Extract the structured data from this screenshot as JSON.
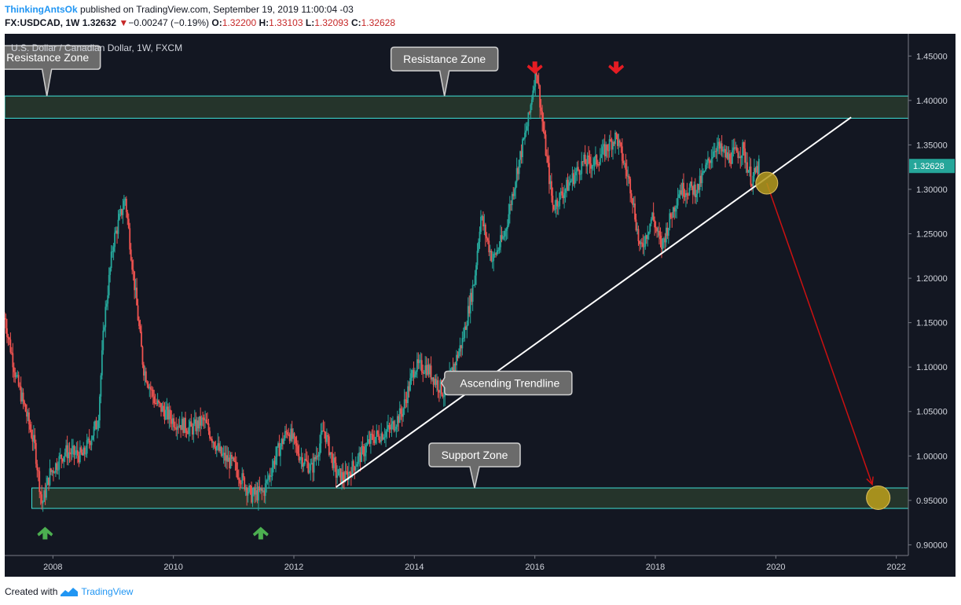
{
  "header": {
    "author": "ThinkingAntsOk",
    "published_text": "published on TradingView.com, September 19, 2019 11:00:04 -03",
    "symbol": "FX:USDCAD, 1W",
    "last_price": "1.32632",
    "down_arrow": "▼",
    "change": "−0.00247 (−0.19%)",
    "o_label": "O:",
    "o_value": "1.32200",
    "h_label": "H:",
    "h_value": "1.33103",
    "l_label": "L:",
    "l_value": "1.32093",
    "c_label": "C:",
    "c_value": "1.32628"
  },
  "footer": {
    "created_with": "Created with",
    "brand": "TradingView"
  },
  "colors": {
    "background": "#131722",
    "up": "#26a69a",
    "down": "#ef5350",
    "zone_fill": "#25342b",
    "zone_border": "#3ee0d6",
    "trendline": "#ffffff",
    "projection": "#cc1111",
    "target_circle": "#b59a1c",
    "callout_fill": "#6b6b6b",
    "green_arrow": "#4caf50",
    "red_arrow": "#e51c23"
  },
  "chart_data": {
    "type": "candlestick",
    "title": "U.S. Dollar / Canadian Dollar, 1W, FXCM",
    "x_range": [
      2007.2,
      2022.2
    ],
    "y_range": [
      0.888,
      1.475
    ],
    "x_tick_labels": [
      "2008",
      "2010",
      "2012",
      "2014",
      "2016",
      "2018",
      "2020",
      "2022"
    ],
    "x_tick_values": [
      2008,
      2010,
      2012,
      2014,
      2016,
      2018,
      2020,
      2022
    ],
    "y_tick_labels": [
      "1.45000",
      "1.40000",
      "1.35000",
      "1.30000",
      "1.25000",
      "1.20000",
      "1.15000",
      "1.10000",
      "1.05000",
      "1.00000",
      "0.95000",
      "0.90000"
    ],
    "y_tick_values": [
      1.45,
      1.4,
      1.35,
      1.3,
      1.25,
      1.2,
      1.15,
      1.1,
      1.05,
      1.0,
      0.95,
      0.9
    ],
    "last_price_label": "1.32628",
    "last_price": 1.32628,
    "price_path": [
      [
        2007.2,
        1.155
      ],
      [
        2007.4,
        1.085
      ],
      [
        2007.55,
        1.05
      ],
      [
        2007.7,
        1.01
      ],
      [
        2007.82,
        0.945
      ],
      [
        2007.95,
        0.98
      ],
      [
        2008.2,
        1.005
      ],
      [
        2008.5,
        1.0
      ],
      [
        2008.75,
        1.04
      ],
      [
        2008.85,
        1.15
      ],
      [
        2009.0,
        1.24
      ],
      [
        2009.2,
        1.29
      ],
      [
        2009.5,
        1.1
      ],
      [
        2009.7,
        1.06
      ],
      [
        2010.0,
        1.04
      ],
      [
        2010.3,
        1.03
      ],
      [
        2010.5,
        1.04
      ],
      [
        2010.8,
        1.0
      ],
      [
        2011.0,
        0.99
      ],
      [
        2011.3,
        0.955
      ],
      [
        2011.5,
        0.96
      ],
      [
        2011.7,
        1.0
      ],
      [
        2011.9,
        1.03
      ],
      [
        2012.1,
        1.0
      ],
      [
        2012.3,
        0.985
      ],
      [
        2012.5,
        1.03
      ],
      [
        2012.7,
        0.98
      ],
      [
        2012.85,
        0.975
      ],
      [
        2013.0,
        0.99
      ],
      [
        2013.3,
        1.02
      ],
      [
        2013.6,
        1.03
      ],
      [
        2013.8,
        1.05
      ],
      [
        2014.0,
        1.1
      ],
      [
        2014.2,
        1.1
      ],
      [
        2014.5,
        1.07
      ],
      [
        2014.8,
        1.13
      ],
      [
        2015.0,
        1.2
      ],
      [
        2015.1,
        1.27
      ],
      [
        2015.3,
        1.22
      ],
      [
        2015.5,
        1.25
      ],
      [
        2015.7,
        1.32
      ],
      [
        2015.9,
        1.38
      ],
      [
        2016.02,
        1.44
      ],
      [
        2016.15,
        1.36
      ],
      [
        2016.3,
        1.28
      ],
      [
        2016.5,
        1.3
      ],
      [
        2016.8,
        1.33
      ],
      [
        2017.0,
        1.33
      ],
      [
        2017.35,
        1.36
      ],
      [
        2017.6,
        1.3
      ],
      [
        2017.75,
        1.23
      ],
      [
        2017.95,
        1.27
      ],
      [
        2018.1,
        1.235
      ],
      [
        2018.4,
        1.3
      ],
      [
        2018.7,
        1.3
      ],
      [
        2019.0,
        1.35
      ],
      [
        2019.2,
        1.335
      ],
      [
        2019.45,
        1.345
      ],
      [
        2019.6,
        1.31
      ],
      [
        2019.72,
        1.326
      ]
    ],
    "annotations": {
      "resistance_zone": {
        "label": "Resistance Zone",
        "x_range": [
          2007.2,
          2022.2
        ],
        "y_range": [
          1.38,
          1.405
        ]
      },
      "support_zone": {
        "label": "Support Zone",
        "x_range": [
          2007.65,
          2022.2
        ],
        "y_range": [
          0.941,
          0.964
        ]
      },
      "ascending_trendline": {
        "label": "Ascending Trendline",
        "from": [
          2012.7,
          0.965
        ],
        "to": [
          2021.25,
          1.381
        ]
      },
      "resistance_callout_left": {
        "label": "Resistance Zone",
        "at": [
          2007.9,
          1.405
        ]
      },
      "resistance_callout_mid": {
        "label": "Resistance Zone",
        "at": [
          2014.5,
          1.405
        ]
      },
      "support_callout": {
        "label": "Support Zone",
        "at": [
          2015.0,
          0.964
        ]
      },
      "trendline_callout": {
        "label": "Ascending Trendline",
        "at": [
          2014.45,
          1.082
        ]
      },
      "break_circle": {
        "x": 2019.85,
        "y": 1.307
      },
      "target_circle": {
        "x": 2021.7,
        "y": 0.953
      },
      "projection_arrow": {
        "from": [
          2019.85,
          1.307
        ],
        "to": [
          2021.6,
          0.968
        ]
      },
      "red_arrows": [
        [
          2016.0,
          1.435
        ],
        [
          2017.35,
          1.435
        ]
      ],
      "green_arrows": [
        [
          2007.87,
          0.915
        ],
        [
          2011.45,
          0.915
        ]
      ]
    }
  }
}
